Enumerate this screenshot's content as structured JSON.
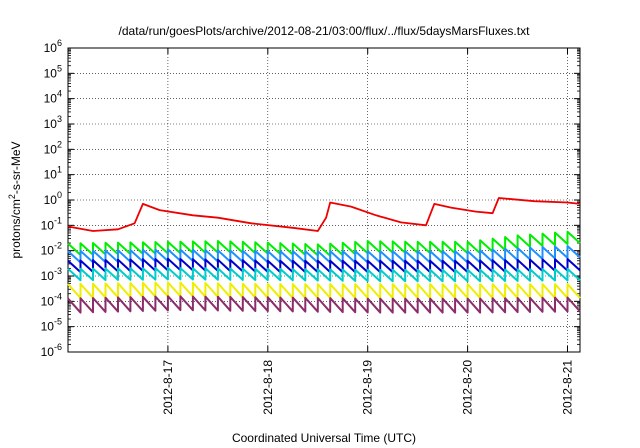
{
  "chart_data": {
    "type": "line",
    "title": "/data/run/goesPlots/archive/2012-08-21/03:00/flux/../flux/5daysMarsFluxes.txt",
    "xlabel": "Coordinated Universal Time (UTC)",
    "ylabel": "protons/cm2-s-sr-MeV",
    "yscale": "log",
    "ylim": [
      1e-06,
      1000000.0
    ],
    "xlim": [
      "2012-08-16 00:00",
      "2012-08-21 03:00"
    ],
    "grid": true,
    "legend": "none",
    "y_ticks": [
      {
        "base": "10",
        "exp": "-6"
      },
      {
        "base": "10",
        "exp": "-5"
      },
      {
        "base": "10",
        "exp": "-4"
      },
      {
        "base": "10",
        "exp": "-3"
      },
      {
        "base": "10",
        "exp": "-2"
      },
      {
        "base": "10",
        "exp": "-1"
      },
      {
        "base": "10",
        "exp": "0"
      },
      {
        "base": "10",
        "exp": "1"
      },
      {
        "base": "10",
        "exp": "2"
      },
      {
        "base": "10",
        "exp": "3"
      },
      {
        "base": "10",
        "exp": "4"
      },
      {
        "base": "10",
        "exp": "5"
      },
      {
        "base": "10",
        "exp": "6"
      }
    ],
    "x_ticks": [
      "2012-8-17",
      "2012-8-18",
      "2012-8-19",
      "2012-8-20",
      "2012-8-21"
    ],
    "series": [
      {
        "color": "#ee0000",
        "points": [
          [
            "2012-08-16 00:00",
            0.09
          ],
          [
            "2012-08-16 06:00",
            0.06
          ],
          [
            "2012-08-16 12:00",
            0.07
          ],
          [
            "2012-08-16 16:00",
            0.12
          ],
          [
            "2012-08-16 18:00",
            0.7
          ],
          [
            "2012-08-16 22:00",
            0.4
          ],
          [
            "2012-08-17 06:00",
            0.25
          ],
          [
            "2012-08-17 12:00",
            0.2
          ],
          [
            "2012-08-17 20:00",
            0.12
          ],
          [
            "2012-08-18 06:00",
            0.08
          ],
          [
            "2012-08-18 12:00",
            0.06
          ],
          [
            "2012-08-18 14:00",
            0.2
          ],
          [
            "2012-08-18 15:00",
            0.8
          ],
          [
            "2012-08-18 20:00",
            0.55
          ],
          [
            "2012-08-19 02:00",
            0.25
          ],
          [
            "2012-08-19 08:00",
            0.13
          ],
          [
            "2012-08-19 14:00",
            0.1
          ],
          [
            "2012-08-19 16:00",
            0.7
          ],
          [
            "2012-08-19 20:00",
            0.5
          ],
          [
            "2012-08-20 02:00",
            0.35
          ],
          [
            "2012-08-20 06:00",
            0.3
          ],
          [
            "2012-08-20 07:30",
            1.2
          ],
          [
            "2012-08-20 16:00",
            0.9
          ],
          [
            "2012-08-21 00:00",
            0.8
          ],
          [
            "2012-08-21 03:00",
            0.7
          ]
        ]
      },
      {
        "color": "#00ee00",
        "points": [
          [
            "2012-08-16 00:00",
            0.012
          ],
          [
            "2012-08-16 12:00",
            0.013
          ],
          [
            "2012-08-17 00:00",
            0.014
          ],
          [
            "2012-08-17 12:00",
            0.015
          ],
          [
            "2012-08-18 00:00",
            0.013
          ],
          [
            "2012-08-18 12:00",
            0.011
          ],
          [
            "2012-08-19 00:00",
            0.015
          ],
          [
            "2012-08-19 12:00",
            0.014
          ],
          [
            "2012-08-20 00:00",
            0.014
          ],
          [
            "2012-08-20 12:00",
            0.025
          ],
          [
            "2012-08-21 00:00",
            0.035
          ],
          [
            "2012-08-21 03:00",
            0.04
          ]
        ]
      },
      {
        "color": "#1e90ff",
        "points": [
          [
            "2012-08-16 00:00",
            0.006
          ],
          [
            "2012-08-17 00:00",
            0.007
          ],
          [
            "2012-08-18 00:00",
            0.006
          ],
          [
            "2012-08-19 00:00",
            0.006
          ],
          [
            "2012-08-20 00:00",
            0.006
          ],
          [
            "2012-08-20 12:00",
            0.008
          ],
          [
            "2012-08-21 03:00",
            0.01
          ]
        ]
      },
      {
        "color": "#0000cc",
        "points": [
          [
            "2012-08-16 00:00",
            0.0025
          ],
          [
            "2012-08-17 00:00",
            0.003
          ],
          [
            "2012-08-18 00:00",
            0.0025
          ],
          [
            "2012-08-19 00:00",
            0.0025
          ],
          [
            "2012-08-20 00:00",
            0.0025
          ],
          [
            "2012-08-21 03:00",
            0.003
          ]
        ]
      },
      {
        "color": "#00cccc",
        "points": [
          [
            "2012-08-16 00:00",
            0.0012
          ],
          [
            "2012-08-17 00:00",
            0.0013
          ],
          [
            "2012-08-18 00:00",
            0.0012
          ],
          [
            "2012-08-19 00:00",
            0.0011
          ],
          [
            "2012-08-20 00:00",
            0.0011
          ],
          [
            "2012-08-21 03:00",
            0.0012
          ]
        ]
      },
      {
        "color": "#eeee00",
        "points": [
          [
            "2012-08-16 00:00",
            0.0003
          ],
          [
            "2012-08-17 00:00",
            0.00035
          ],
          [
            "2012-08-18 00:00",
            0.0003
          ],
          [
            "2012-08-19 00:00",
            0.0003
          ],
          [
            "2012-08-20 00:00",
            0.0003
          ],
          [
            "2012-08-21 03:00",
            0.0003
          ]
        ]
      },
      {
        "color": "#8b2d6b",
        "points": [
          [
            "2012-08-16 00:00",
            8e-05
          ],
          [
            "2012-08-17 00:00",
            0.0001
          ],
          [
            "2012-08-18 00:00",
            9e-05
          ],
          [
            "2012-08-19 00:00",
            8e-05
          ],
          [
            "2012-08-20 00:00",
            8e-05
          ],
          [
            "2012-08-21 03:00",
            9e-05
          ]
        ]
      }
    ]
  }
}
